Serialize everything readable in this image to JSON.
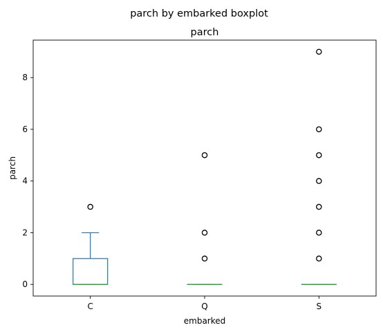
{
  "chart_data": {
    "type": "boxplot",
    "suptitle": "parch by embarked boxplot",
    "title": "parch",
    "xlabel": "embarked",
    "ylabel": "parch",
    "categories": [
      "C",
      "Q",
      "S"
    ],
    "y_ticks": [
      0,
      2,
      4,
      6,
      8
    ],
    "y_tick_labels": [
      "0",
      "2",
      "4",
      "6",
      "8"
    ],
    "ylim": [
      -0.45,
      9.45
    ],
    "grid": false,
    "boxes": [
      {
        "category": "C",
        "whisker_low": 0,
        "q1": 0,
        "median": 0,
        "q3": 1,
        "whisker_high": 2,
        "outliers": [
          3
        ]
      },
      {
        "category": "Q",
        "whisker_low": 0,
        "q1": 0,
        "median": 0,
        "q3": 0,
        "whisker_high": 0,
        "outliers": [
          1,
          2,
          5
        ]
      },
      {
        "category": "S",
        "whisker_low": 0,
        "q1": 0,
        "median": 0,
        "q3": 0,
        "whisker_high": 0,
        "outliers": [
          1,
          2,
          3,
          4,
          5,
          6,
          9
        ]
      }
    ],
    "colors": {
      "box": "#1f77b4",
      "median": "#2ca02c",
      "axes": "#000000"
    }
  }
}
